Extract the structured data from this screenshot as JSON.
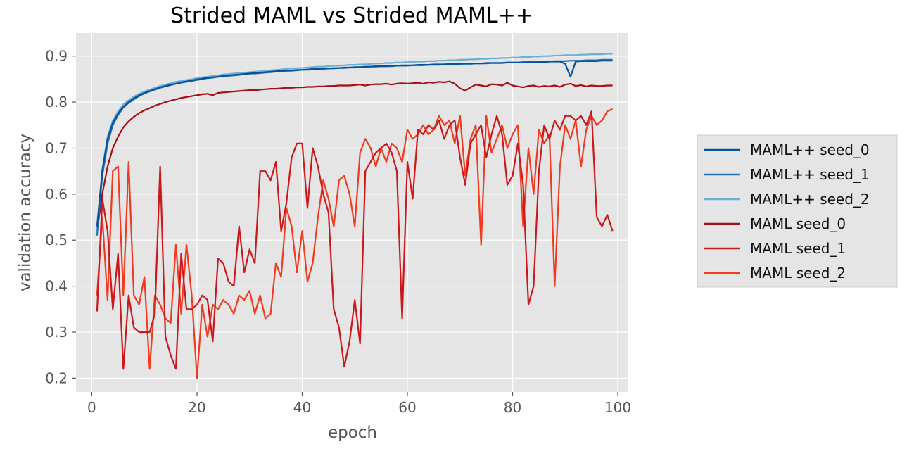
{
  "chart_data": {
    "type": "line",
    "title": "Strided MAML vs Strided MAML++",
    "xlabel": "epoch",
    "ylabel": "validation accuracy",
    "xlim": [
      -3,
      102
    ],
    "ylim": [
      0.17,
      0.95
    ],
    "xticks": [
      0,
      20,
      40,
      60,
      80,
      100
    ],
    "yticks": [
      0.2,
      0.3,
      0.4,
      0.5,
      0.6,
      0.7,
      0.8,
      0.9
    ],
    "x_tick_labels": [
      "0",
      "20",
      "40",
      "60",
      "80",
      "100"
    ],
    "y_tick_labels": [
      "0.2",
      "0.3",
      "0.4",
      "0.5",
      "0.6",
      "0.7",
      "0.8",
      "0.9"
    ],
    "grid": true,
    "legend_position": "outside-right",
    "x": [
      1,
      2,
      3,
      4,
      5,
      6,
      7,
      8,
      9,
      10,
      11,
      12,
      13,
      14,
      15,
      16,
      17,
      18,
      19,
      20,
      21,
      22,
      23,
      24,
      25,
      26,
      27,
      28,
      29,
      30,
      31,
      32,
      33,
      34,
      35,
      36,
      37,
      38,
      39,
      40,
      41,
      42,
      43,
      44,
      45,
      46,
      47,
      48,
      49,
      50,
      51,
      52,
      53,
      54,
      55,
      56,
      57,
      58,
      59,
      60,
      61,
      62,
      63,
      64,
      65,
      66,
      67,
      68,
      69,
      70,
      71,
      72,
      73,
      74,
      75,
      76,
      77,
      78,
      79,
      80,
      81,
      82,
      83,
      84,
      85,
      86,
      87,
      88,
      89,
      90,
      91,
      92,
      93,
      94,
      95,
      96,
      97,
      98,
      99
    ],
    "series": [
      {
        "name": "MAML++ seed_0",
        "color": "#08519c",
        "values": [
          0.53,
          0.65,
          0.72,
          0.755,
          0.775,
          0.79,
          0.8,
          0.808,
          0.815,
          0.82,
          0.824,
          0.828,
          0.832,
          0.835,
          0.838,
          0.84,
          0.843,
          0.845,
          0.847,
          0.849,
          0.851,
          0.853,
          0.854,
          0.855,
          0.857,
          0.858,
          0.859,
          0.86,
          0.861,
          0.862,
          0.863,
          0.864,
          0.865,
          0.866,
          0.867,
          0.868,
          0.868,
          0.869,
          0.87,
          0.87,
          0.871,
          0.872,
          0.872,
          0.873,
          0.873,
          0.874,
          0.874,
          0.875,
          0.875,
          0.876,
          0.876,
          0.877,
          0.877,
          0.878,
          0.878,
          0.878,
          0.879,
          0.879,
          0.88,
          0.88,
          0.88,
          0.881,
          0.881,
          0.881,
          0.882,
          0.882,
          0.882,
          0.883,
          0.883,
          0.883,
          0.884,
          0.884,
          0.884,
          0.884,
          0.885,
          0.885,
          0.885,
          0.885,
          0.886,
          0.886,
          0.886,
          0.886,
          0.887,
          0.887,
          0.887,
          0.887,
          0.888,
          0.888,
          0.888,
          0.883,
          0.855,
          0.888,
          0.889,
          0.889,
          0.889,
          0.889,
          0.89,
          0.89,
          0.89
        ]
      },
      {
        "name": "MAML++ seed_1",
        "color": "#2171b5",
        "values": [
          0.51,
          0.64,
          0.71,
          0.75,
          0.772,
          0.788,
          0.798,
          0.806,
          0.813,
          0.819,
          0.823,
          0.827,
          0.831,
          0.834,
          0.837,
          0.84,
          0.842,
          0.844,
          0.846,
          0.848,
          0.85,
          0.852,
          0.853,
          0.855,
          0.856,
          0.857,
          0.858,
          0.859,
          0.861,
          0.862,
          0.862,
          0.863,
          0.864,
          0.865,
          0.866,
          0.867,
          0.868,
          0.868,
          0.869,
          0.87,
          0.87,
          0.871,
          0.872,
          0.872,
          0.873,
          0.873,
          0.874,
          0.874,
          0.875,
          0.875,
          0.876,
          0.876,
          0.877,
          0.877,
          0.878,
          0.878,
          0.878,
          0.879,
          0.879,
          0.879,
          0.88,
          0.88,
          0.88,
          0.881,
          0.881,
          0.881,
          0.882,
          0.882,
          0.882,
          0.883,
          0.883,
          0.883,
          0.884,
          0.884,
          0.884,
          0.885,
          0.885,
          0.885,
          0.886,
          0.886,
          0.886,
          0.887,
          0.887,
          0.887,
          0.888,
          0.888,
          0.888,
          0.889,
          0.889,
          0.889,
          0.89,
          0.89,
          0.89,
          0.891,
          0.891,
          0.891,
          0.892,
          0.892,
          0.892
        ]
      },
      {
        "name": "MAML++ seed_2",
        "color": "#6baed6",
        "values": [
          0.52,
          0.655,
          0.725,
          0.76,
          0.78,
          0.795,
          0.804,
          0.812,
          0.818,
          0.823,
          0.827,
          0.831,
          0.835,
          0.838,
          0.841,
          0.844,
          0.846,
          0.848,
          0.85,
          0.852,
          0.854,
          0.855,
          0.857,
          0.858,
          0.86,
          0.861,
          0.862,
          0.863,
          0.864,
          0.865,
          0.866,
          0.867,
          0.868,
          0.869,
          0.87,
          0.871,
          0.872,
          0.873,
          0.874,
          0.874,
          0.875,
          0.876,
          0.877,
          0.877,
          0.878,
          0.879,
          0.879,
          0.88,
          0.881,
          0.881,
          0.882,
          0.882,
          0.883,
          0.884,
          0.884,
          0.885,
          0.885,
          0.886,
          0.886,
          0.887,
          0.887,
          0.888,
          0.888,
          0.889,
          0.889,
          0.89,
          0.89,
          0.891,
          0.891,
          0.892,
          0.892,
          0.893,
          0.893,
          0.894,
          0.894,
          0.895,
          0.895,
          0.896,
          0.896,
          0.897,
          0.897,
          0.898,
          0.898,
          0.899,
          0.899,
          0.9,
          0.9,
          0.901,
          0.901,
          0.902,
          0.902,
          0.902,
          0.903,
          0.903,
          0.904,
          0.904,
          0.904,
          0.905,
          0.905
        ]
      },
      {
        "name": "MAML seed_0",
        "color": "#a50f15",
        "values": [
          0.52,
          0.6,
          0.66,
          0.7,
          0.725,
          0.745,
          0.758,
          0.768,
          0.776,
          0.782,
          0.787,
          0.792,
          0.796,
          0.8,
          0.803,
          0.806,
          0.809,
          0.811,
          0.813,
          0.815,
          0.817,
          0.818,
          0.815,
          0.82,
          0.821,
          0.822,
          0.823,
          0.824,
          0.825,
          0.826,
          0.826,
          0.827,
          0.828,
          0.829,
          0.829,
          0.83,
          0.831,
          0.831,
          0.832,
          0.832,
          0.833,
          0.833,
          0.834,
          0.834,
          0.835,
          0.835,
          0.836,
          0.836,
          0.836,
          0.837,
          0.838,
          0.836,
          0.838,
          0.839,
          0.839,
          0.84,
          0.838,
          0.84,
          0.841,
          0.84,
          0.841,
          0.842,
          0.84,
          0.843,
          0.842,
          0.844,
          0.843,
          0.845,
          0.84,
          0.83,
          0.825,
          0.832,
          0.838,
          0.836,
          0.834,
          0.839,
          0.838,
          0.836,
          0.842,
          0.836,
          0.834,
          0.832,
          0.835,
          0.836,
          0.833,
          0.835,
          0.834,
          0.836,
          0.833,
          0.838,
          0.84,
          0.835,
          0.837,
          0.834,
          0.836,
          0.835,
          0.835,
          0.836,
          0.836
        ]
      },
      {
        "name": "MAML seed_1",
        "color": "#cb181d",
        "values": [
          0.345,
          0.59,
          0.52,
          0.35,
          0.47,
          0.22,
          0.38,
          0.31,
          0.3,
          0.3,
          0.3,
          0.34,
          0.66,
          0.29,
          0.25,
          0.22,
          0.47,
          0.35,
          0.35,
          0.36,
          0.38,
          0.37,
          0.28,
          0.46,
          0.45,
          0.41,
          0.4,
          0.53,
          0.43,
          0.48,
          0.45,
          0.65,
          0.65,
          0.63,
          0.67,
          0.52,
          0.58,
          0.68,
          0.71,
          0.71,
          0.57,
          0.7,
          0.66,
          0.6,
          0.56,
          0.35,
          0.31,
          0.225,
          0.28,
          0.37,
          0.275,
          0.65,
          0.67,
          0.69,
          0.7,
          0.71,
          0.69,
          0.65,
          0.33,
          0.67,
          0.59,
          0.74,
          0.73,
          0.75,
          0.74,
          0.76,
          0.72,
          0.75,
          0.76,
          0.68,
          0.62,
          0.71,
          0.73,
          0.75,
          0.68,
          0.73,
          0.77,
          0.73,
          0.62,
          0.64,
          0.71,
          0.62,
          0.36,
          0.4,
          0.65,
          0.75,
          0.72,
          0.76,
          0.74,
          0.77,
          0.77,
          0.76,
          0.77,
          0.75,
          0.78,
          0.55,
          0.53,
          0.555,
          0.52
        ]
      },
      {
        "name": "MAML seed_2",
        "color": "#f03b20",
        "values": [
          0.38,
          0.55,
          0.37,
          0.65,
          0.66,
          0.38,
          0.67,
          0.38,
          0.36,
          0.42,
          0.22,
          0.38,
          0.36,
          0.33,
          0.32,
          0.49,
          0.34,
          0.49,
          0.38,
          0.2,
          0.36,
          0.29,
          0.36,
          0.35,
          0.37,
          0.36,
          0.34,
          0.38,
          0.37,
          0.39,
          0.34,
          0.38,
          0.33,
          0.34,
          0.45,
          0.42,
          0.57,
          0.53,
          0.43,
          0.52,
          0.41,
          0.45,
          0.55,
          0.63,
          0.59,
          0.53,
          0.63,
          0.64,
          0.6,
          0.53,
          0.69,
          0.72,
          0.7,
          0.66,
          0.7,
          0.67,
          0.71,
          0.7,
          0.67,
          0.74,
          0.72,
          0.73,
          0.75,
          0.73,
          0.74,
          0.77,
          0.75,
          0.76,
          0.71,
          0.77,
          0.64,
          0.72,
          0.75,
          0.49,
          0.77,
          0.69,
          0.72,
          0.75,
          0.7,
          0.73,
          0.75,
          0.53,
          0.7,
          0.6,
          0.74,
          0.71,
          0.73,
          0.4,
          0.66,
          0.75,
          0.72,
          0.76,
          0.66,
          0.74,
          0.77,
          0.75,
          0.76,
          0.78,
          0.785
        ]
      }
    ]
  }
}
